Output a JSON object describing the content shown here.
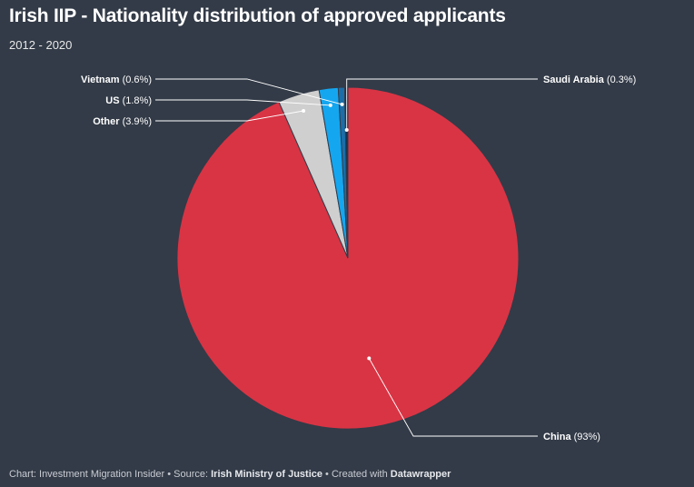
{
  "header": {
    "title": "Irish IIP - Nationality distribution of approved applicants",
    "subtitle": "2012 - 2020"
  },
  "footer": {
    "prefix": "Chart: Investment Migration Insider • Source: ",
    "source": "Irish Ministry of Justice",
    "middle": " • Created with ",
    "tool": "Datawrapper"
  },
  "chart_data": {
    "type": "pie",
    "title": "Irish IIP - Nationality distribution of approved applicants",
    "subtitle": "2012 - 2020",
    "slices": [
      {
        "name": "China",
        "value": 93,
        "label": "(93%)",
        "color": "#d93444"
      },
      {
        "name": "Other",
        "value": 3.9,
        "label": "(3.9%)",
        "color": "#cfcfcf"
      },
      {
        "name": "US",
        "value": 1.8,
        "label": "(1.8%)",
        "color": "#15a6f0"
      },
      {
        "name": "Vietnam",
        "value": 0.6,
        "label": "(0.6%)",
        "color": "#1b6ea8"
      },
      {
        "name": "Saudi Arabia",
        "value": 0.3,
        "label": "(0.3%)",
        "color": "#0f3554"
      }
    ],
    "start": "12 o'clock",
    "direction": "clockwise"
  }
}
